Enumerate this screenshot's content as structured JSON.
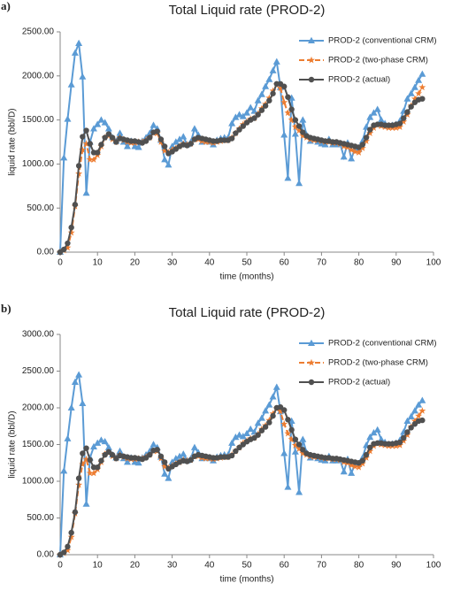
{
  "chart_data": [
    {
      "type": "line",
      "panel_label": "a)",
      "title": "Total Liquid rate (PROD-2)",
      "x_label": "time (months)",
      "y_label": "liquid rate (bbl/D)",
      "xlim": [
        0,
        100
      ],
      "xticks": [
        0,
        10,
        20,
        30,
        40,
        50,
        60,
        70,
        80,
        90,
        100
      ],
      "ylim": [
        0,
        2500
      ],
      "yticks": [
        {
          "value": 0,
          "label": "0.00"
        },
        {
          "value": 500,
          "label": "500.00"
        },
        {
          "value": 1000,
          "label": "1000.00"
        },
        {
          "value": 1500,
          "label": "1500.00"
        },
        {
          "value": 2000,
          "label": "2000.00"
        },
        {
          "value": 2500,
          "label": "2500.00"
        }
      ],
      "legend": "top-right",
      "x": [
        0,
        1,
        2,
        3,
        4,
        5,
        6,
        7,
        8,
        9,
        10,
        11,
        12,
        13,
        14,
        15,
        16,
        17,
        18,
        19,
        20,
        21,
        22,
        23,
        24,
        25,
        26,
        27,
        28,
        29,
        30,
        31,
        32,
        33,
        34,
        35,
        36,
        37,
        38,
        39,
        40,
        41,
        42,
        43,
        44,
        45,
        46,
        47,
        48,
        49,
        50,
        51,
        52,
        53,
        54,
        55,
        56,
        57,
        58,
        59,
        60,
        61,
        62,
        63,
        64,
        65,
        66,
        67,
        68,
        69,
        70,
        71,
        72,
        73,
        74,
        75,
        76,
        77,
        78,
        79,
        80,
        81,
        82,
        83,
        84,
        85,
        86,
        87,
        88,
        89,
        90,
        91,
        92,
        93,
        94,
        95,
        96,
        97
      ],
      "series": [
        {
          "name": "PROD-2 (conventional CRM)",
          "color": "#5b9bd5",
          "marker": "triangle",
          "dashed": false,
          "values": [
            0,
            1070,
            1510,
            1900,
            2260,
            2370,
            1990,
            670,
            1250,
            1400,
            1450,
            1500,
            1470,
            1400,
            1300,
            1260,
            1350,
            1250,
            1200,
            1260,
            1200,
            1190,
            1260,
            1300,
            1350,
            1440,
            1400,
            1270,
            1050,
            990,
            1200,
            1250,
            1280,
            1310,
            1220,
            1250,
            1400,
            1330,
            1250,
            1260,
            1250,
            1220,
            1270,
            1290,
            1300,
            1300,
            1460,
            1530,
            1560,
            1540,
            1580,
            1640,
            1600,
            1720,
            1790,
            1880,
            1960,
            2060,
            2160,
            1870,
            1330,
            840,
            1750,
            1340,
            780,
            1500,
            1330,
            1260,
            1280,
            1250,
            1230,
            1220,
            1280,
            1220,
            1220,
            1230,
            1080,
            1240,
            1060,
            1180,
            1170,
            1260,
            1420,
            1530,
            1580,
            1620,
            1500,
            1460,
            1430,
            1440,
            1450,
            1490,
            1600,
            1740,
            1800,
            1870,
            1950,
            2020
          ]
        },
        {
          "name": "PROD-2 (two-phase CRM)",
          "color": "#ed7d31",
          "marker": "star",
          "dashed": true,
          "values": [
            0,
            20,
            50,
            220,
            520,
            890,
            1160,
            1230,
            1050,
            1050,
            1100,
            1200,
            1300,
            1320,
            1280,
            1250,
            1300,
            1270,
            1250,
            1240,
            1240,
            1250,
            1250,
            1270,
            1300,
            1350,
            1350,
            1250,
            1150,
            1130,
            1160,
            1180,
            1200,
            1230,
            1220,
            1230,
            1280,
            1280,
            1260,
            1250,
            1250,
            1240,
            1250,
            1260,
            1270,
            1270,
            1300,
            1350,
            1400,
            1450,
            1480,
            1510,
            1520,
            1570,
            1630,
            1680,
            1750,
            1830,
            1900,
            1860,
            1700,
            1580,
            1500,
            1420,
            1380,
            1320,
            1300,
            1280,
            1270,
            1270,
            1260,
            1250,
            1250,
            1240,
            1240,
            1230,
            1200,
            1190,
            1160,
            1140,
            1130,
            1180,
            1260,
            1350,
            1410,
            1440,
            1430,
            1420,
            1410,
            1410,
            1410,
            1420,
            1480,
            1560,
            1660,
            1740,
            1800,
            1870
          ]
        },
        {
          "name": "PROD-2 (actual)",
          "color": "#505050",
          "marker": "circle",
          "dashed": false,
          "values": [
            0,
            30,
            100,
            280,
            540,
            980,
            1310,
            1380,
            1230,
            1130,
            1130,
            1220,
            1300,
            1340,
            1300,
            1250,
            1290,
            1280,
            1270,
            1260,
            1260,
            1250,
            1240,
            1260,
            1300,
            1360,
            1370,
            1280,
            1200,
            1120,
            1140,
            1170,
            1200,
            1220,
            1210,
            1230,
            1280,
            1300,
            1290,
            1280,
            1270,
            1260,
            1260,
            1270,
            1270,
            1270,
            1290,
            1350,
            1390,
            1430,
            1470,
            1500,
            1520,
            1560,
            1610,
            1660,
            1720,
            1800,
            1910,
            1910,
            1880,
            1760,
            1620,
            1500,
            1430,
            1360,
            1320,
            1300,
            1290,
            1280,
            1270,
            1260,
            1260,
            1250,
            1250,
            1240,
            1230,
            1220,
            1210,
            1200,
            1190,
            1220,
            1300,
            1390,
            1440,
            1450,
            1450,
            1440,
            1440,
            1440,
            1450,
            1460,
            1520,
            1590,
            1650,
            1700,
            1730,
            1740
          ]
        }
      ]
    },
    {
      "type": "line",
      "panel_label": "b)",
      "title": "Total Liquid rate (PROD-2)",
      "x_label": "time (months)",
      "y_label": "liquid rate (bbl/D)",
      "xlim": [
        0,
        100
      ],
      "xticks": [
        0,
        10,
        20,
        30,
        40,
        50,
        60,
        70,
        80,
        90,
        100
      ],
      "ylim": [
        0,
        3000
      ],
      "yticks": [
        {
          "value": 0,
          "label": "0.00"
        },
        {
          "value": 500,
          "label": "500.00"
        },
        {
          "value": 1000,
          "label": "1000.00"
        },
        {
          "value": 1500,
          "label": "1500.00"
        },
        {
          "value": 2000,
          "label": "2000.00"
        },
        {
          "value": 2500,
          "label": "2500.00"
        },
        {
          "value": 3000,
          "label": "3000.00"
        }
      ],
      "legend": "top-right",
      "x": [
        0,
        1,
        2,
        3,
        4,
        5,
        6,
        7,
        8,
        9,
        10,
        11,
        12,
        13,
        14,
        15,
        16,
        17,
        18,
        19,
        20,
        21,
        22,
        23,
        24,
        25,
        26,
        27,
        28,
        29,
        30,
        31,
        32,
        33,
        34,
        35,
        36,
        37,
        38,
        39,
        40,
        41,
        42,
        43,
        44,
        45,
        46,
        47,
        48,
        49,
        50,
        51,
        52,
        53,
        54,
        55,
        56,
        57,
        58,
        59,
        60,
        61,
        62,
        63,
        64,
        65,
        66,
        67,
        68,
        69,
        70,
        71,
        72,
        73,
        74,
        75,
        76,
        77,
        78,
        79,
        80,
        81,
        82,
        83,
        84,
        85,
        86,
        87,
        88,
        89,
        90,
        91,
        92,
        93,
        94,
        95,
        96,
        97
      ],
      "series": [
        {
          "name": "PROD-2 (conventional CRM)",
          "color": "#5b9bd5",
          "marker": "triangle",
          "dashed": false,
          "values": [
            0,
            1140,
            1580,
            2000,
            2350,
            2450,
            2060,
            690,
            1320,
            1470,
            1520,
            1560,
            1540,
            1460,
            1360,
            1320,
            1410,
            1310,
            1260,
            1320,
            1260,
            1250,
            1320,
            1360,
            1410,
            1500,
            1460,
            1330,
            1100,
            1040,
            1260,
            1310,
            1340,
            1370,
            1280,
            1310,
            1460,
            1390,
            1310,
            1320,
            1310,
            1280,
            1330,
            1350,
            1360,
            1360,
            1520,
            1600,
            1630,
            1610,
            1650,
            1710,
            1670,
            1790,
            1860,
            1960,
            2040,
            2150,
            2280,
            1950,
            1380,
            920,
            1820,
            1400,
            850,
            1570,
            1390,
            1320,
            1340,
            1310,
            1290,
            1280,
            1340,
            1280,
            1280,
            1290,
            1130,
            1300,
            1110,
            1240,
            1230,
            1320,
            1490,
            1600,
            1660,
            1700,
            1570,
            1530,
            1500,
            1510,
            1520,
            1560,
            1670,
            1820,
            1880,
            1960,
            2040,
            2100
          ]
        },
        {
          "name": "PROD-2 (two-phase CRM)",
          "color": "#ed7d31",
          "marker": "star",
          "dashed": true,
          "values": [
            0,
            20,
            60,
            240,
            560,
            950,
            1230,
            1300,
            1110,
            1110,
            1160,
            1260,
            1370,
            1390,
            1340,
            1310,
            1360,
            1330,
            1310,
            1300,
            1300,
            1310,
            1310,
            1330,
            1360,
            1410,
            1410,
            1310,
            1200,
            1180,
            1210,
            1240,
            1260,
            1290,
            1280,
            1290,
            1340,
            1340,
            1320,
            1310,
            1310,
            1300,
            1310,
            1320,
            1330,
            1330,
            1360,
            1410,
            1460,
            1520,
            1550,
            1580,
            1590,
            1640,
            1710,
            1760,
            1830,
            1920,
            1990,
            1950,
            1780,
            1650,
            1570,
            1490,
            1440,
            1380,
            1360,
            1340,
            1330,
            1330,
            1320,
            1310,
            1310,
            1300,
            1300,
            1290,
            1260,
            1250,
            1220,
            1200,
            1190,
            1240,
            1320,
            1410,
            1480,
            1510,
            1500,
            1490,
            1480,
            1480,
            1480,
            1490,
            1550,
            1630,
            1740,
            1820,
            1890,
            1960
          ]
        },
        {
          "name": "PROD-2 (actual)",
          "color": "#505050",
          "marker": "circle",
          "dashed": false,
          "values": [
            0,
            30,
            110,
            300,
            580,
            1040,
            1380,
            1450,
            1290,
            1190,
            1190,
            1280,
            1360,
            1400,
            1360,
            1310,
            1350,
            1340,
            1330,
            1320,
            1320,
            1310,
            1300,
            1320,
            1360,
            1420,
            1430,
            1340,
            1260,
            1170,
            1200,
            1230,
            1260,
            1280,
            1270,
            1290,
            1340,
            1360,
            1350,
            1340,
            1330,
            1320,
            1320,
            1330,
            1330,
            1330,
            1350,
            1410,
            1460,
            1500,
            1540,
            1570,
            1590,
            1630,
            1690,
            1740,
            1800,
            1890,
            2000,
            2010,
            1970,
            1840,
            1700,
            1570,
            1500,
            1430,
            1380,
            1360,
            1350,
            1340,
            1330,
            1320,
            1320,
            1310,
            1310,
            1300,
            1290,
            1280,
            1270,
            1260,
            1250,
            1280,
            1360,
            1460,
            1510,
            1520,
            1520,
            1510,
            1510,
            1510,
            1520,
            1530,
            1590,
            1670,
            1730,
            1780,
            1820,
            1830
          ]
        }
      ]
    }
  ]
}
